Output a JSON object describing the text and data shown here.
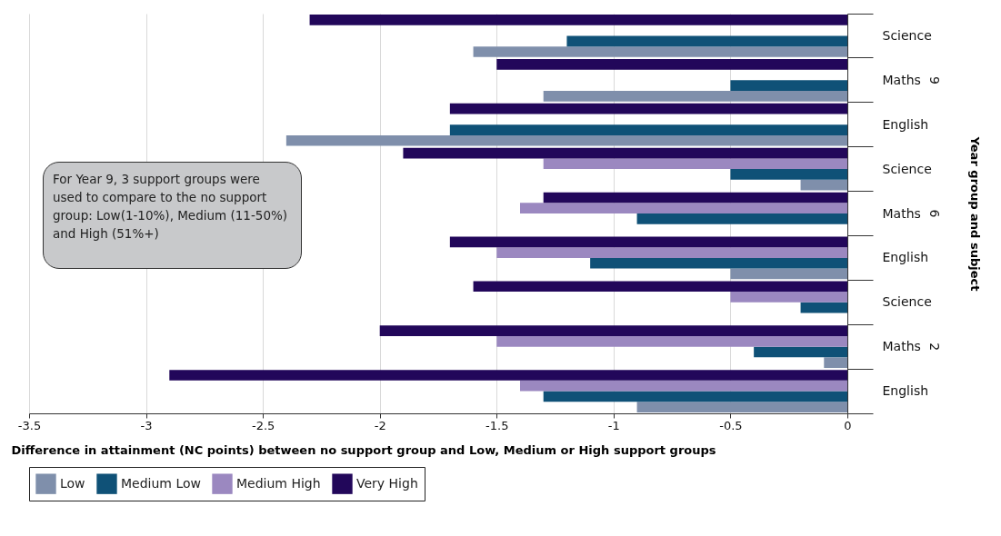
{
  "chart_data": {
    "type": "bar",
    "orientation": "horizontal",
    "categories": [
      "Science",
      "Maths",
      "English",
      "Science",
      "Maths",
      "English",
      "Science",
      "Maths",
      "English"
    ],
    "xlabel": "Difference in attainment (NC points) between no support group and Low, Medium or High support groups",
    "ylabel": "Year group and subject",
    "xlim": [
      -3.5,
      0
    ],
    "xticks": [
      -3.5,
      -3,
      -2.5,
      -2,
      -1.5,
      -1,
      -0.5,
      0
    ],
    "grid": "x",
    "legend": "bottom",
    "annotations": [
      "For Year 9, 3 support groups were used to compare to the no support group: Low(1-10%), Medium (11-50%) and High (51%+)",
      "9",
      "6",
      "2"
    ],
    "series": [
      {
        "name": "Low",
        "color": "#7f8fab",
        "values": [
          -1.6,
          -1.3,
          -2.4,
          -0.2,
          null,
          -0.5,
          null,
          -0.1,
          -0.9
        ]
      },
      {
        "name": "Medium Low",
        "color": "#0f5177",
        "values": [
          -1.2,
          -0.5,
          -1.7,
          -0.5,
          -0.9,
          -1.1,
          -0.2,
          -0.4,
          -1.3
        ]
      },
      {
        "name": "Medium High",
        "color": "#9b88c0",
        "values": [
          null,
          null,
          null,
          -1.3,
          -1.4,
          -1.5,
          -0.5,
          -1.5,
          -1.4
        ]
      },
      {
        "name": "Very High",
        "color": "#22075a",
        "values": [
          -2.3,
          -1.5,
          -1.7,
          -1.9,
          -1.3,
          -1.7,
          -1.6,
          -2,
          -2.9
        ]
      }
    ]
  }
}
